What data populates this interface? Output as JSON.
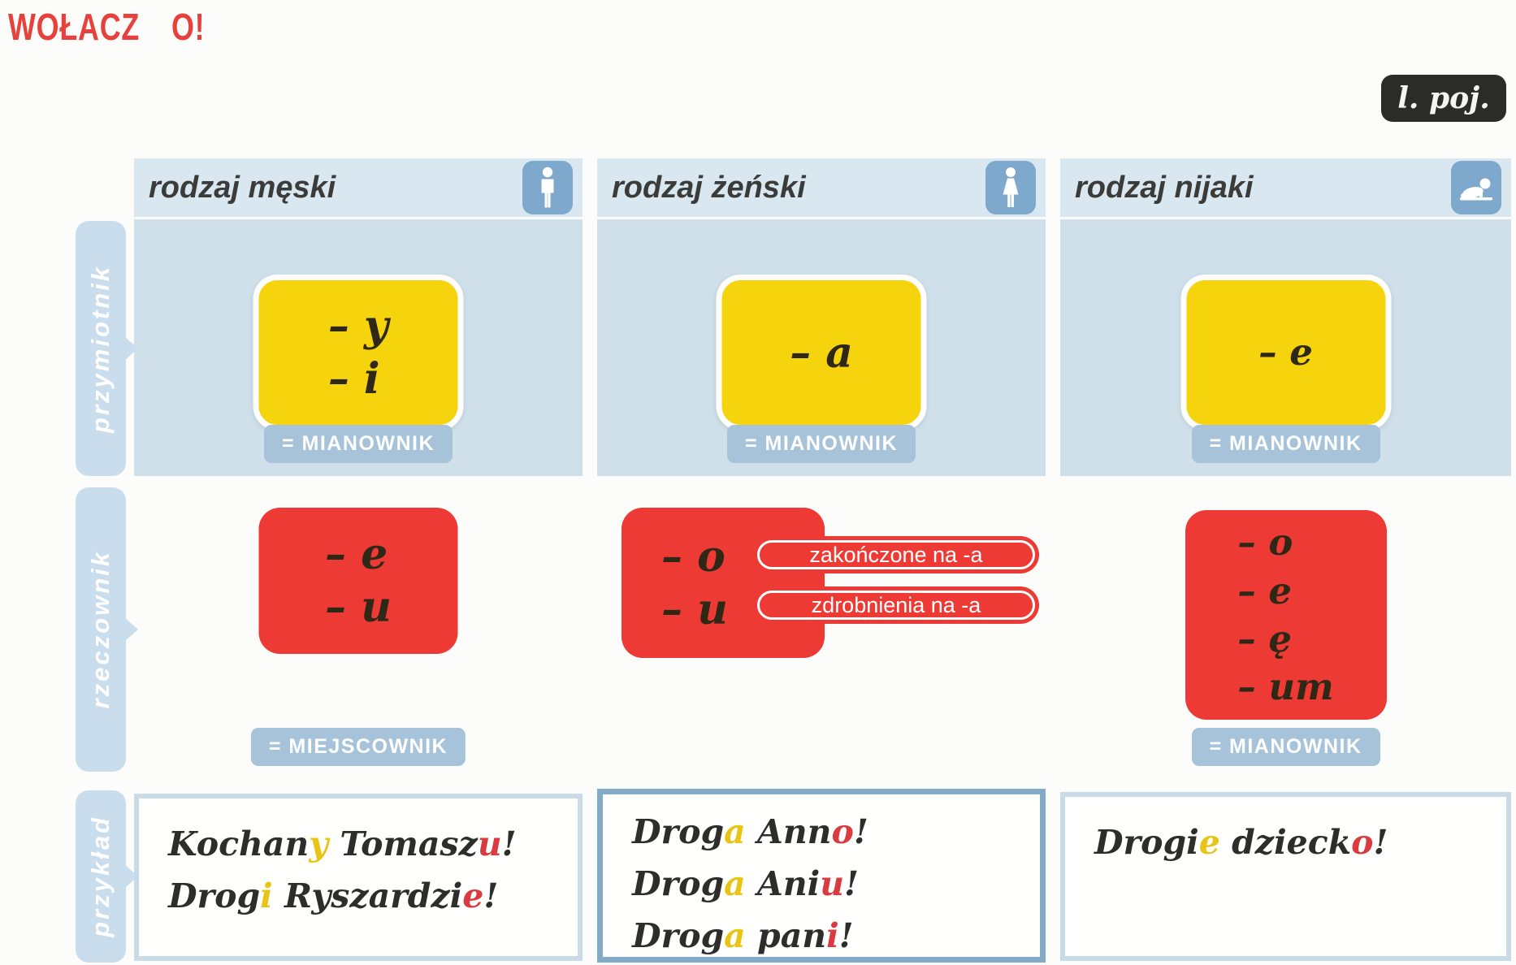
{
  "title": "WOŁACZ O!",
  "corner_badge": "l. poj.",
  "row_labels": [
    "przymiotnik",
    "rzeczownik",
    "przykład"
  ],
  "colors": {
    "title_red": "#e6413c",
    "box_red": "#ee3a35",
    "box_yellow": "#f5d40e",
    "panel_blue": "#cfe0ea",
    "tab_blue": "#cadded",
    "badge_blue": "#a6c3da",
    "icon_blue": "#7ea9cd",
    "corner_badge_bg": "#2b2b29",
    "letter_yellow": "#eac414",
    "letter_red": "#da3a40"
  },
  "columns": [
    {
      "header": "rodzaj męski",
      "icon": "man-icon",
      "adjective": {
        "endings": [
          "– y",
          "– i"
        ],
        "badge": "= MIANOWNIK"
      },
      "noun": {
        "endings": [
          "– e",
          "– u"
        ],
        "badge": "= MIEJSCOWNIK"
      },
      "examples": [
        [
          {
            "t": "Kochan",
            "c": "dark"
          },
          {
            "t": "y",
            "c": "yellow"
          },
          {
            "t": " Tomasz",
            "c": "dark"
          },
          {
            "t": "u",
            "c": "red"
          },
          {
            "t": "!",
            "c": "dark"
          }
        ],
        [
          {
            "t": "Drog",
            "c": "dark"
          },
          {
            "t": "i",
            "c": "yellow"
          },
          {
            "t": " Ryszardzi",
            "c": "dark"
          },
          {
            "t": "e",
            "c": "red"
          },
          {
            "t": "!",
            "c": "dark"
          }
        ]
      ]
    },
    {
      "header": "rodzaj żeński",
      "icon": "woman-icon",
      "adjective": {
        "endings": [
          "– a"
        ],
        "badge": "= MIANOWNIK"
      },
      "noun": {
        "endings": [
          "– o",
          "– u"
        ],
        "notes": [
          "zakończone na -a",
          "zdrobnienia na -a"
        ]
      },
      "examples": [
        [
          {
            "t": "Drog",
            "c": "dark"
          },
          {
            "t": "a",
            "c": "yellow"
          },
          {
            "t": " Ann",
            "c": "dark"
          },
          {
            "t": "o",
            "c": "red"
          },
          {
            "t": "!",
            "c": "dark"
          }
        ],
        [
          {
            "t": "Drog",
            "c": "dark"
          },
          {
            "t": "a",
            "c": "yellow"
          },
          {
            "t": " Ani",
            "c": "dark"
          },
          {
            "t": "u",
            "c": "red"
          },
          {
            "t": "!",
            "c": "dark"
          }
        ],
        [
          {
            "t": "Drog",
            "c": "dark"
          },
          {
            "t": "a",
            "c": "yellow"
          },
          {
            "t": " pan",
            "c": "dark"
          },
          {
            "t": "i",
            "c": "red"
          },
          {
            "t": "!",
            "c": "dark"
          }
        ]
      ]
    },
    {
      "header": "rodzaj nijaki",
      "icon": "baby-icon",
      "adjective": {
        "endings": [
          "– e"
        ],
        "badge": "= MIANOWNIK"
      },
      "noun": {
        "endings": [
          "– o",
          "– e",
          "– ę",
          "– um"
        ],
        "badge": "= MIANOWNIK"
      },
      "examples": [
        [
          {
            "t": "Drogi",
            "c": "dark"
          },
          {
            "t": "e",
            "c": "yellow"
          },
          {
            "t": " dzieck",
            "c": "dark"
          },
          {
            "t": "o",
            "c": "red"
          },
          {
            "t": "!",
            "c": "dark"
          }
        ]
      ]
    }
  ]
}
